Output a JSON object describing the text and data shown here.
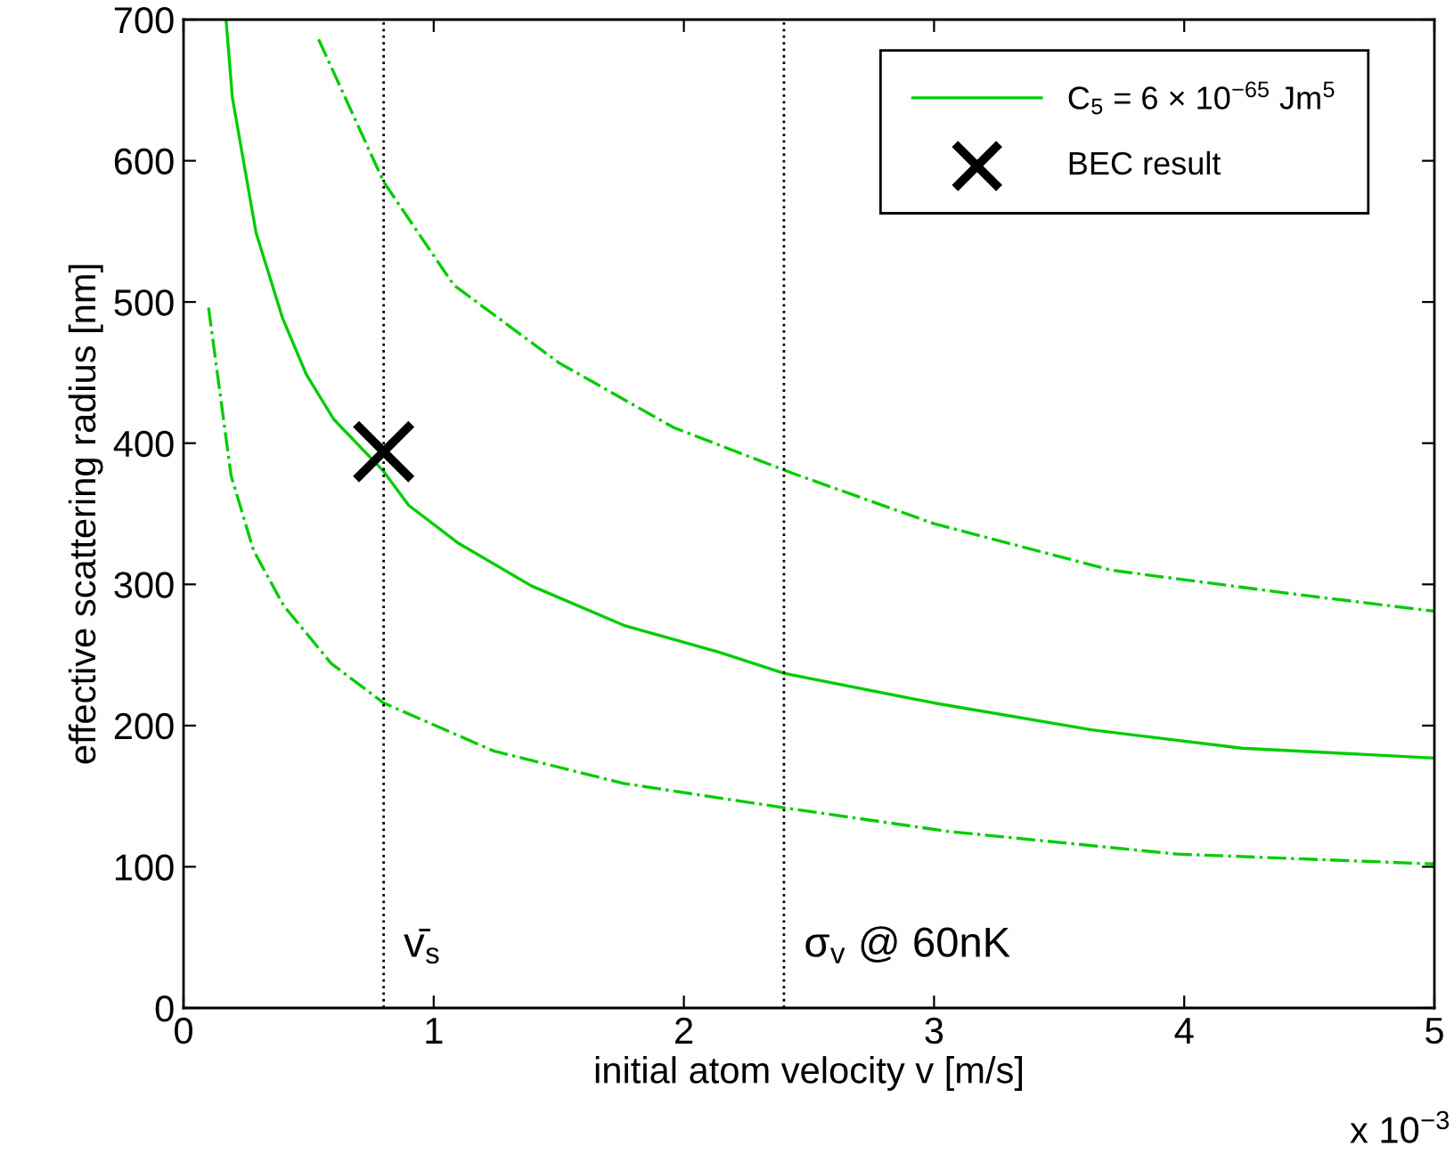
{
  "chart_data": {
    "type": "line",
    "xlabel": "initial atom velocity v [m/s]",
    "ylabel": "effective scattering radius [nm]",
    "xlim": [
      0,
      5
    ],
    "xticks": [
      0,
      1,
      2,
      3,
      4,
      5
    ],
    "ylim": [
      0,
      700
    ],
    "yticks": [
      0,
      100,
      200,
      300,
      400,
      500,
      600,
      700
    ],
    "grid": false,
    "legend": "top right",
    "series": [
      {
        "name": "C$_{5}$ = 6 × 10$^{−65}$ Jm$^{5}$",
        "color": "#00cc00",
        "line_style": "solid",
        "x": [
          0.17,
          0.195,
          0.29,
          0.395,
          0.49,
          0.6,
          0.8,
          0.9,
          1.1,
          1.39,
          1.76,
          2.14,
          2.4,
          3.0,
          3.63,
          4.23,
          5.0
        ],
        "values": [
          700,
          645,
          549,
          489,
          449,
          417,
          380,
          356,
          329,
          299,
          271,
          252,
          237,
          216,
          197,
          184,
          177
        ]
      },
      {
        "color": "#00cc00",
        "line_style": "dashdot",
        "x": [
          0.54,
          0.8,
          1.08,
          1.5,
          1.96,
          2.43,
          3.0,
          3.71,
          4.49,
          5.0
        ],
        "values": [
          686,
          585,
          512,
          457,
          411,
          379,
          343,
          310,
          292,
          281
        ]
      },
      {
        "color": "#00cc00",
        "line_style": "dashdot",
        "x": [
          0.1,
          0.19,
          0.28,
          0.4,
          0.59,
          0.8,
          1.24,
          1.76,
          2.43,
          3.06,
          3.97,
          5.0
        ],
        "values": [
          496,
          377,
          324,
          285,
          244,
          216,
          182,
          159,
          141,
          125,
          109,
          102
        ]
      },
      {
        "name": "BEC result",
        "type": "scatter",
        "marker": "cross",
        "color": "#000000",
        "x": [
          0.8
        ],
        "values": [
          394
        ]
      }
    ],
    "ref_lines": [
      {
        "axis": "x",
        "value": 0.8,
        "label": "v̄$_{s}$",
        "color": "#000000",
        "line_style": "dotted"
      },
      {
        "axis": "x",
        "value": 2.4,
        "label": "σ$_{v}$ @ 60nK",
        "color": "#000000",
        "line_style": "dotted"
      }
    ],
    "annotations": [
      "x 10$^{−3}$"
    ]
  }
}
